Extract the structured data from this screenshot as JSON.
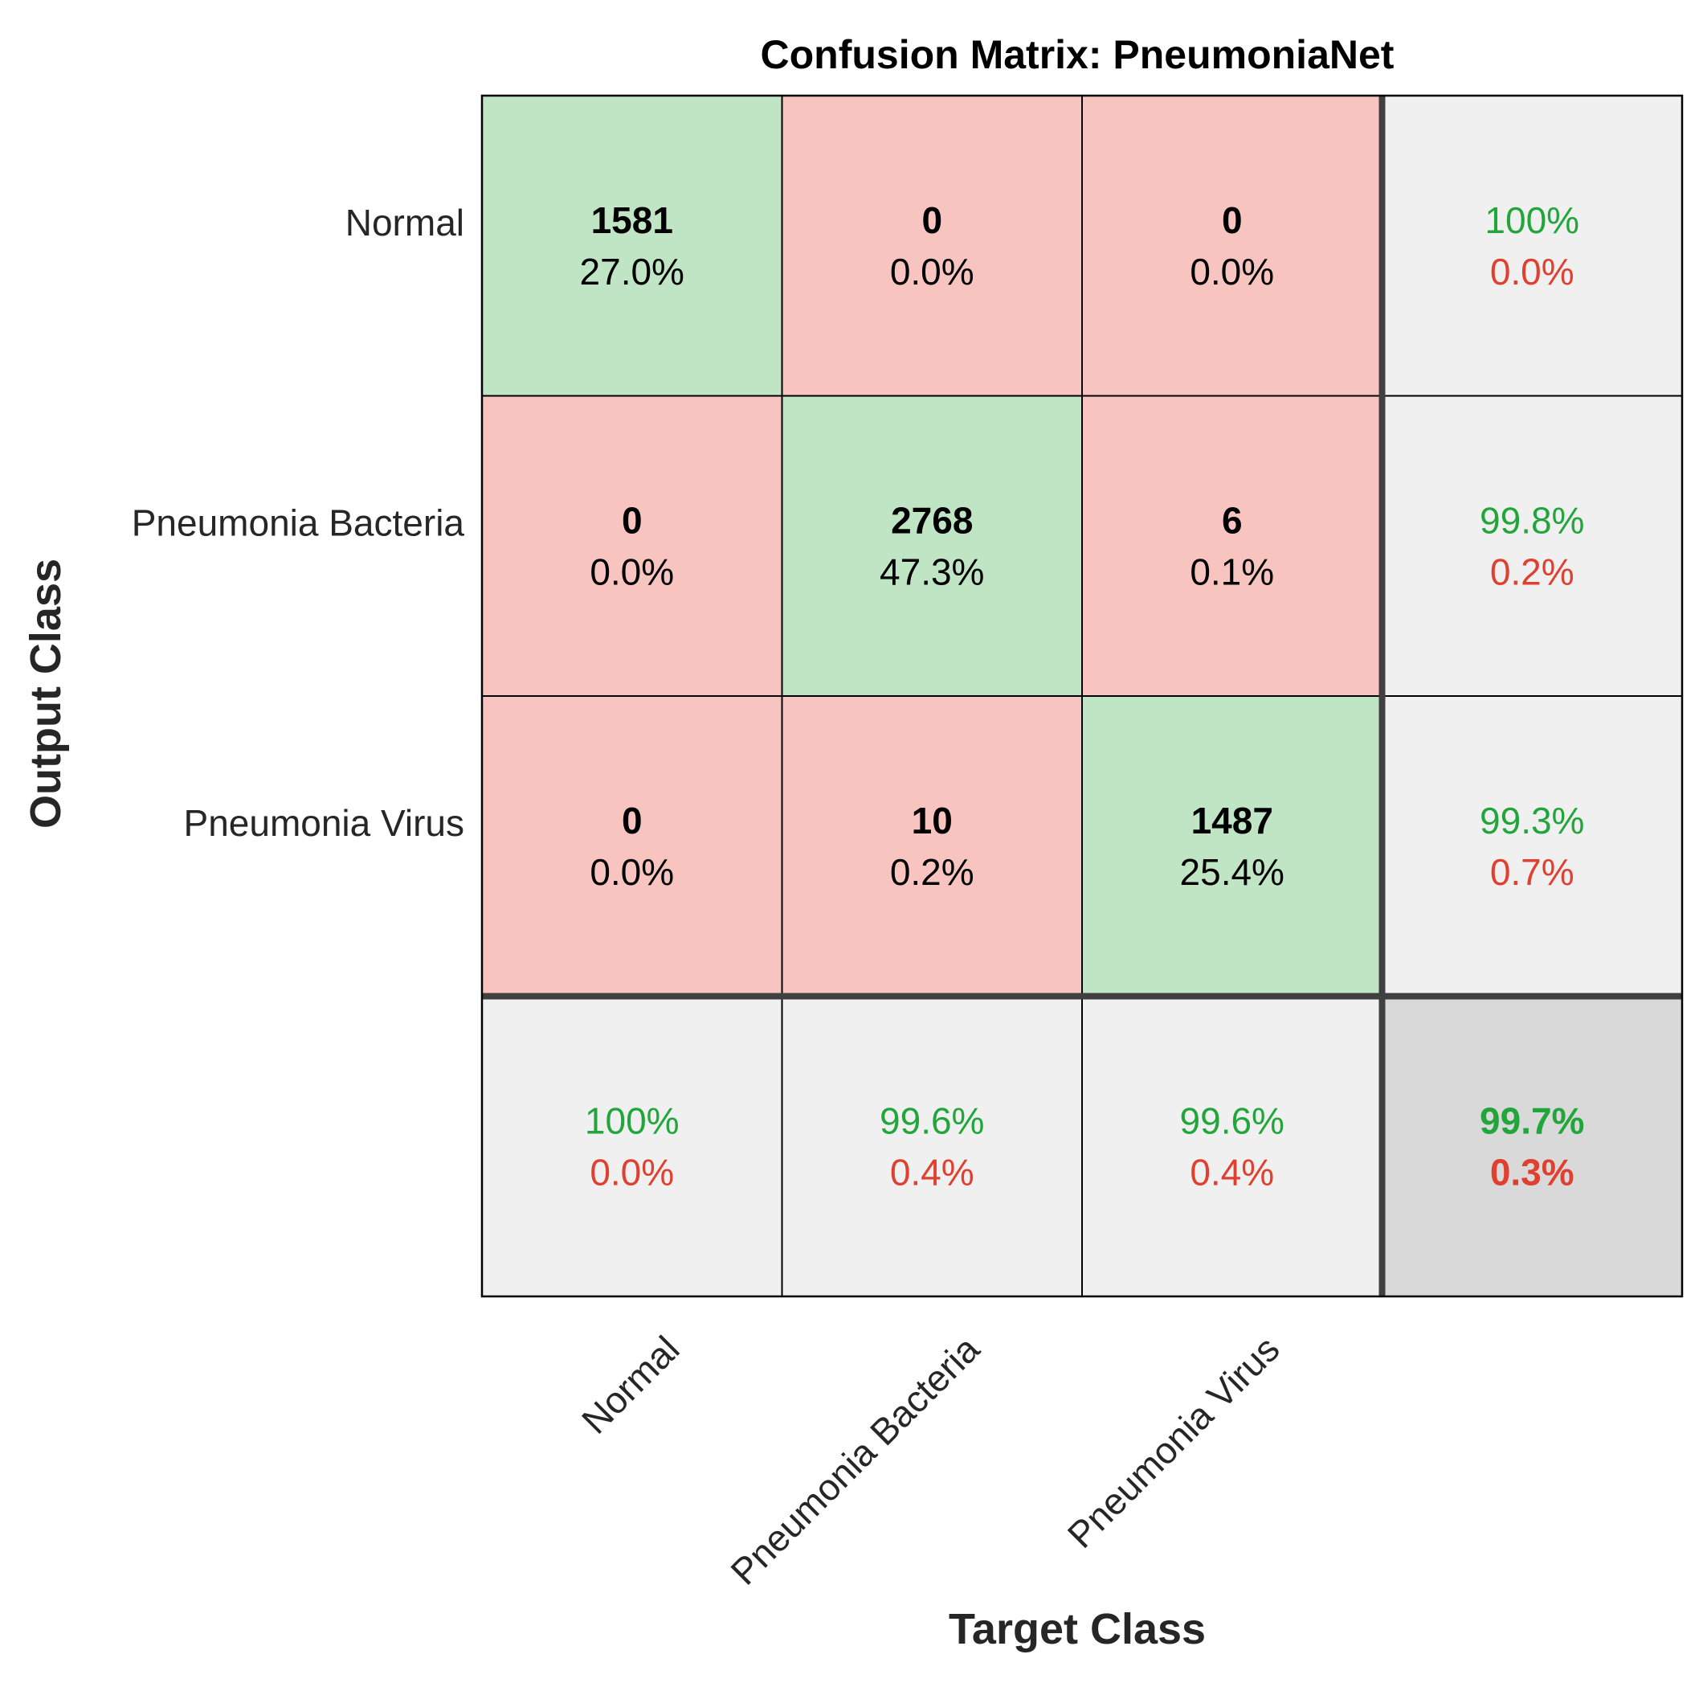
{
  "chart_data": {
    "type": "confusion-matrix",
    "title": "Confusion Matrix: PneumoniaNet",
    "xlabel": "Target Class",
    "ylabel": "Output Class",
    "classes": [
      "Normal",
      "Pneumonia Bacteria",
      "Pneumonia Virus"
    ],
    "counts": [
      [
        1581,
        0,
        0
      ],
      [
        0,
        2768,
        6
      ],
      [
        0,
        10,
        1487
      ]
    ],
    "percents": [
      [
        "27.0%",
        "0.0%",
        "0.0%"
      ],
      [
        "0.0%",
        "47.3%",
        "0.1%"
      ],
      [
        "0.0%",
        "0.2%",
        "25.4%"
      ]
    ],
    "row_summary": [
      {
        "correct": "100%",
        "error": "0.0%"
      },
      {
        "correct": "99.8%",
        "error": "0.2%"
      },
      {
        "correct": "99.3%",
        "error": "0.7%"
      }
    ],
    "col_summary": [
      {
        "correct": "100%",
        "error": "0.0%"
      },
      {
        "correct": "99.6%",
        "error": "0.4%"
      },
      {
        "correct": "99.6%",
        "error": "0.4%"
      }
    ],
    "overall": {
      "correct": "99.7%",
      "error": "0.3%"
    }
  },
  "colors": {
    "diagonal": "#bfe5c5",
    "off_diagonal": "#f7c4c0",
    "summary": "#f0f0f0",
    "overall": "#d9d9d9",
    "correct_text": "#22a63c",
    "error_text": "#e0402f",
    "grid": "#000000",
    "thick_border": "#404040",
    "label_text": "#262626"
  }
}
